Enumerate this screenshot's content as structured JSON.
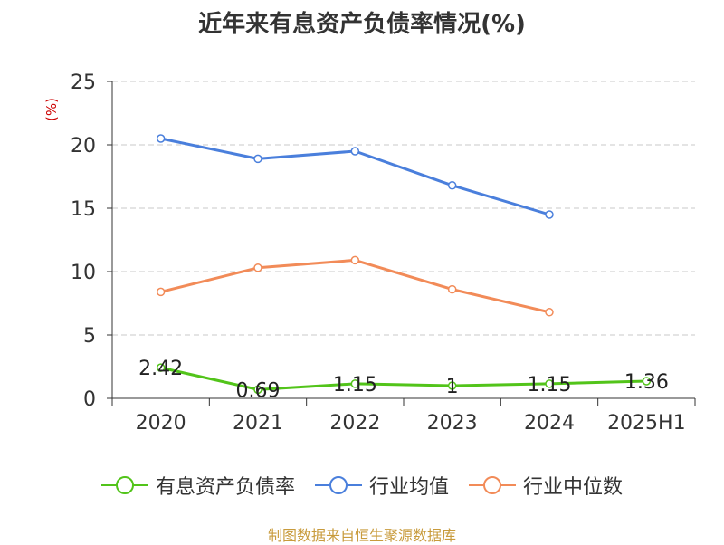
{
  "chart_data": {
    "type": "line",
    "title": "近年来有息资产负债率情况(%)",
    "ylabel": "(%)",
    "categories": [
      "2020",
      "2021",
      "2022",
      "2023",
      "2024",
      "2025H1"
    ],
    "ylim": [
      0,
      25
    ],
    "yticks": [
      0,
      5,
      10,
      15,
      20,
      25
    ],
    "grid": true,
    "legend_position": "bottom",
    "series": [
      {
        "name": "有息资产负债率",
        "color": "#52c41a",
        "values": [
          2.42,
          0.69,
          1.15,
          1,
          1.15,
          1.36
        ],
        "labels": [
          "2.42",
          "0.69",
          "1.15",
          "1",
          "1.15",
          "1.36"
        ]
      },
      {
        "name": "行业均值",
        "color": "#4a7fdc",
        "values": [
          20.5,
          18.9,
          19.5,
          16.8,
          14.5,
          null
        ]
      },
      {
        "name": "行业中位数",
        "color": "#f28b58",
        "values": [
          8.4,
          10.3,
          10.9,
          8.6,
          6.8,
          null
        ]
      }
    ]
  },
  "footer": "制图数据来自恒生聚源数据库"
}
